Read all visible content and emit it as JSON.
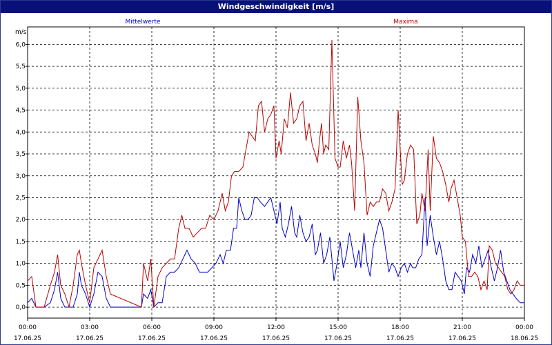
{
  "window": {
    "title": "Windgeschwindigkeit [m/s]"
  },
  "chart_data": {
    "type": "line",
    "title": "Windgeschwindigkeit [m/s]",
    "ylabel": "m/s",
    "ylim": [
      -0.25,
      6.4
    ],
    "xlim": [
      0,
      24
    ],
    "yticks": [
      "0,0",
      "0,5",
      "1,0",
      "1,5",
      "2,0",
      "2,5",
      "3,0",
      "3,5",
      "4,0",
      "4,5",
      "5,0",
      "5,5",
      "6,0"
    ],
    "xticks": [
      {
        "time": "00:00",
        "date": "17.06.25"
      },
      {
        "time": "03:00",
        "date": "17.06.25"
      },
      {
        "time": "06:00",
        "date": "17.06.25"
      },
      {
        "time": "09:00",
        "date": "17.06.25"
      },
      {
        "time": "12:00",
        "date": "17.06.25"
      },
      {
        "time": "15:00",
        "date": "17.06.25"
      },
      {
        "time": "18:00",
        "date": "17.06.25"
      },
      {
        "time": "21:00",
        "date": "17.06.25"
      },
      {
        "time": "00:00",
        "date": "18.06.25"
      }
    ],
    "grid": true,
    "series": [
      {
        "name": "Mittelwerte",
        "color": "#0000cc",
        "points": [
          [
            0,
            0.1
          ],
          [
            0.2,
            0.2
          ],
          [
            0.4,
            0
          ],
          [
            0.8,
            0
          ],
          [
            1.1,
            0.1
          ],
          [
            1.3,
            0.4
          ],
          [
            1.45,
            0.8
          ],
          [
            1.6,
            0.2
          ],
          [
            1.8,
            0
          ],
          [
            2.0,
            0
          ],
          [
            2.2,
            0
          ],
          [
            2.4,
            0.3
          ],
          [
            2.5,
            0.8
          ],
          [
            2.6,
            0.5
          ],
          [
            2.8,
            0.3
          ],
          [
            3.0,
            0
          ],
          [
            3.2,
            0.3
          ],
          [
            3.4,
            0.8
          ],
          [
            3.6,
            0.7
          ],
          [
            3.8,
            0.2
          ],
          [
            4.0,
            0
          ],
          [
            5.5,
            0
          ],
          [
            5.6,
            0.3
          ],
          [
            5.8,
            0.2
          ],
          [
            5.95,
            0.4
          ],
          [
            6.1,
            0
          ],
          [
            6.3,
            0.1
          ],
          [
            6.5,
            0.1
          ],
          [
            6.7,
            0.7
          ],
          [
            6.9,
            0.8
          ],
          [
            7.1,
            0.8
          ],
          [
            7.3,
            0.9
          ],
          [
            7.5,
            1.1
          ],
          [
            7.6,
            1.2
          ],
          [
            7.7,
            1.3
          ],
          [
            7.9,
            1.1
          ],
          [
            8.1,
            1.0
          ],
          [
            8.3,
            0.8
          ],
          [
            8.5,
            0.8
          ],
          [
            8.7,
            0.8
          ],
          [
            8.9,
            0.9
          ],
          [
            9.1,
            1.0
          ],
          [
            9.3,
            1.2
          ],
          [
            9.45,
            1.0
          ],
          [
            9.6,
            1.3
          ],
          [
            9.8,
            1.3
          ],
          [
            9.95,
            1.8
          ],
          [
            10.1,
            1.8
          ],
          [
            10.2,
            2.5
          ],
          [
            10.35,
            2.2
          ],
          [
            10.5,
            2.0
          ],
          [
            10.65,
            2.0
          ],
          [
            10.8,
            2.1
          ],
          [
            10.95,
            2.5
          ],
          [
            11.1,
            2.5
          ],
          [
            11.25,
            2.4
          ],
          [
            11.45,
            2.3
          ],
          [
            11.6,
            2.4
          ],
          [
            11.75,
            2.5
          ],
          [
            11.9,
            2.2
          ],
          [
            12.05,
            1.9
          ],
          [
            12.2,
            2.4
          ],
          [
            12.3,
            1.8
          ],
          [
            12.45,
            1.6
          ],
          [
            12.6,
            1.9
          ],
          [
            12.75,
            2.3
          ],
          [
            12.9,
            1.7
          ],
          [
            13.0,
            1.6
          ],
          [
            13.15,
            2.1
          ],
          [
            13.3,
            1.7
          ],
          [
            13.45,
            1.5
          ],
          [
            13.6,
            1.6
          ],
          [
            13.75,
            1.9
          ],
          [
            13.9,
            1.2
          ],
          [
            14.0,
            1.3
          ],
          [
            14.15,
            1.7
          ],
          [
            14.3,
            1.0
          ],
          [
            14.45,
            1.2
          ],
          [
            14.6,
            1.6
          ],
          [
            14.7,
            1.1
          ],
          [
            14.8,
            0.6
          ],
          [
            14.95,
            1.0
          ],
          [
            15.1,
            1.5
          ],
          [
            15.25,
            0.9
          ],
          [
            15.4,
            1.2
          ],
          [
            15.55,
            1.7
          ],
          [
            15.7,
            1.3
          ],
          [
            15.85,
            0.9
          ],
          [
            16.0,
            1.3
          ],
          [
            16.1,
            0.9
          ],
          [
            16.25,
            1.7
          ],
          [
            16.4,
            1.0
          ],
          [
            16.55,
            0.7
          ],
          [
            16.7,
            1.4
          ],
          [
            16.85,
            1.7
          ],
          [
            17.0,
            2.0
          ],
          [
            17.15,
            1.8
          ],
          [
            17.3,
            1.3
          ],
          [
            17.45,
            0.8
          ],
          [
            17.6,
            1.0
          ],
          [
            17.75,
            0.9
          ],
          [
            17.9,
            0.7
          ],
          [
            18.05,
            0.9
          ],
          [
            18.2,
            1.0
          ],
          [
            18.35,
            0.8
          ],
          [
            18.5,
            1.0
          ],
          [
            18.6,
            0.9
          ],
          [
            18.75,
            0.9
          ],
          [
            18.9,
            1.1
          ],
          [
            19.05,
            1.2
          ],
          [
            19.2,
            2.5
          ],
          [
            19.3,
            1.4
          ],
          [
            19.45,
            2.1
          ],
          [
            19.6,
            1.6
          ],
          [
            19.75,
            1.2
          ],
          [
            19.9,
            1.5
          ],
          [
            20.05,
            1.1
          ],
          [
            20.2,
            0.6
          ],
          [
            20.35,
            0.4
          ],
          [
            20.5,
            0.4
          ],
          [
            20.65,
            0.8
          ],
          [
            20.8,
            0.7
          ],
          [
            20.95,
            0.6
          ],
          [
            21.1,
            0.3
          ],
          [
            21.2,
            0.9
          ],
          [
            21.35,
            0.8
          ],
          [
            21.5,
            1.2
          ],
          [
            21.65,
            1.0
          ],
          [
            21.8,
            1.4
          ],
          [
            21.95,
            0.9
          ],
          [
            22.1,
            1.1
          ],
          [
            22.25,
            1.3
          ],
          [
            22.4,
            0.9
          ],
          [
            22.55,
            0.6
          ],
          [
            22.7,
            0.9
          ],
          [
            22.85,
            1.3
          ],
          [
            23.0,
            0.8
          ],
          [
            23.15,
            0.6
          ],
          [
            23.3,
            0.4
          ],
          [
            23.45,
            0.3
          ],
          [
            23.6,
            0.2
          ],
          [
            23.8,
            0.1
          ],
          [
            24.0,
            0.1
          ]
        ]
      },
      {
        "name": "Maxima",
        "color": "#bb0000",
        "points": [
          [
            0,
            0.6
          ],
          [
            0.2,
            0.7
          ],
          [
            0.4,
            0
          ],
          [
            0.8,
            0
          ],
          [
            1.1,
            0.5
          ],
          [
            1.3,
            0.8
          ],
          [
            1.45,
            1.2
          ],
          [
            1.6,
            0.5
          ],
          [
            1.8,
            0.3
          ],
          [
            2.0,
            0
          ],
          [
            2.2,
            0.5
          ],
          [
            2.4,
            1.2
          ],
          [
            2.5,
            1.3
          ],
          [
            2.6,
            1.0
          ],
          [
            2.8,
            0.5
          ],
          [
            3.0,
            0.1
          ],
          [
            3.2,
            0.9
          ],
          [
            3.4,
            1.1
          ],
          [
            3.6,
            1.3
          ],
          [
            3.8,
            0.7
          ],
          [
            4.0,
            0.3
          ],
          [
            5.5,
            0
          ],
          [
            5.6,
            1.0
          ],
          [
            5.8,
            0.6
          ],
          [
            5.95,
            1.1
          ],
          [
            6.1,
            0
          ],
          [
            6.3,
            0.7
          ],
          [
            6.5,
            0.9
          ],
          [
            6.7,
            1.0
          ],
          [
            6.9,
            1.1
          ],
          [
            7.1,
            1.1
          ],
          [
            7.3,
            1.8
          ],
          [
            7.45,
            2.1
          ],
          [
            7.6,
            1.8
          ],
          [
            7.8,
            1.8
          ],
          [
            8.0,
            1.6
          ],
          [
            8.2,
            1.7
          ],
          [
            8.4,
            1.8
          ],
          [
            8.6,
            1.8
          ],
          [
            8.8,
            2.1
          ],
          [
            9.0,
            2.0
          ],
          [
            9.2,
            2.2
          ],
          [
            9.4,
            2.6
          ],
          [
            9.55,
            2.2
          ],
          [
            9.7,
            2.4
          ],
          [
            9.85,
            3.0
          ],
          [
            10.0,
            3.1
          ],
          [
            10.2,
            3.1
          ],
          [
            10.4,
            3.2
          ],
          [
            10.55,
            3.6
          ],
          [
            10.7,
            4.0
          ],
          [
            10.85,
            3.9
          ],
          [
            11.0,
            3.8
          ],
          [
            11.15,
            4.6
          ],
          [
            11.3,
            4.7
          ],
          [
            11.45,
            4.0
          ],
          [
            11.6,
            4.3
          ],
          [
            11.75,
            4.4
          ],
          [
            11.9,
            4.6
          ],
          [
            12.0,
            3.4
          ],
          [
            12.15,
            3.8
          ],
          [
            12.25,
            3.5
          ],
          [
            12.4,
            4.3
          ],
          [
            12.55,
            4.1
          ],
          [
            12.7,
            4.9
          ],
          [
            12.85,
            4.2
          ],
          [
            13.0,
            4.3
          ],
          [
            13.15,
            4.6
          ],
          [
            13.3,
            4.7
          ],
          [
            13.45,
            3.8
          ],
          [
            13.6,
            4.2
          ],
          [
            13.75,
            3.7
          ],
          [
            13.9,
            3.5
          ],
          [
            14.0,
            3.3
          ],
          [
            14.1,
            3.8
          ],
          [
            14.2,
            4.2
          ],
          [
            14.3,
            3.5
          ],
          [
            14.4,
            3.7
          ],
          [
            14.55,
            3.6
          ],
          [
            14.7,
            6.1
          ],
          [
            14.85,
            3.4
          ],
          [
            15.0,
            3.2
          ],
          [
            15.1,
            3.2
          ],
          [
            15.25,
            3.8
          ],
          [
            15.4,
            3.4
          ],
          [
            15.55,
            3.7
          ],
          [
            15.65,
            3.3
          ],
          [
            15.8,
            2.2
          ],
          [
            15.95,
            4.8
          ],
          [
            16.1,
            3.8
          ],
          [
            16.25,
            3.3
          ],
          [
            16.4,
            2.1
          ],
          [
            16.55,
            2.4
          ],
          [
            16.7,
            2.3
          ],
          [
            16.85,
            2.4
          ],
          [
            17.0,
            2.4
          ],
          [
            17.15,
            2.7
          ],
          [
            17.3,
            2.6
          ],
          [
            17.45,
            2.2
          ],
          [
            17.6,
            2.4
          ],
          [
            17.75,
            2.7
          ],
          [
            17.9,
            4.5
          ],
          [
            18.0,
            3.6
          ],
          [
            18.1,
            2.8
          ],
          [
            18.2,
            2.9
          ],
          [
            18.35,
            3.5
          ],
          [
            18.5,
            3.7
          ],
          [
            18.65,
            3.6
          ],
          [
            18.8,
            1.9
          ],
          [
            18.95,
            2.1
          ],
          [
            19.05,
            2.6
          ],
          [
            19.2,
            2.2
          ],
          [
            19.35,
            3.6
          ],
          [
            19.45,
            2.2
          ],
          [
            19.6,
            3.9
          ],
          [
            19.75,
            3.4
          ],
          [
            19.9,
            3.3
          ],
          [
            20.05,
            3.1
          ],
          [
            20.2,
            2.8
          ],
          [
            20.35,
            2.4
          ],
          [
            20.45,
            2.7
          ],
          [
            20.6,
            2.9
          ],
          [
            20.75,
            2.5
          ],
          [
            20.9,
            2.1
          ],
          [
            21.0,
            1.6
          ],
          [
            21.15,
            1.5
          ],
          [
            21.3,
            0.7
          ],
          [
            21.45,
            0.7
          ],
          [
            21.6,
            0.8
          ],
          [
            21.75,
            0.7
          ],
          [
            21.9,
            0.4
          ],
          [
            22.05,
            0.6
          ],
          [
            22.2,
            0.4
          ],
          [
            22.3,
            1.4
          ],
          [
            22.45,
            1.3
          ],
          [
            22.6,
            1.0
          ],
          [
            22.75,
            0.9
          ],
          [
            22.9,
            0.8
          ],
          [
            23.05,
            0.7
          ],
          [
            23.2,
            0.4
          ],
          [
            23.35,
            0.3
          ],
          [
            23.5,
            0.4
          ],
          [
            23.65,
            0.6
          ],
          [
            23.8,
            0.5
          ],
          [
            24.0,
            0.5
          ]
        ]
      }
    ]
  }
}
